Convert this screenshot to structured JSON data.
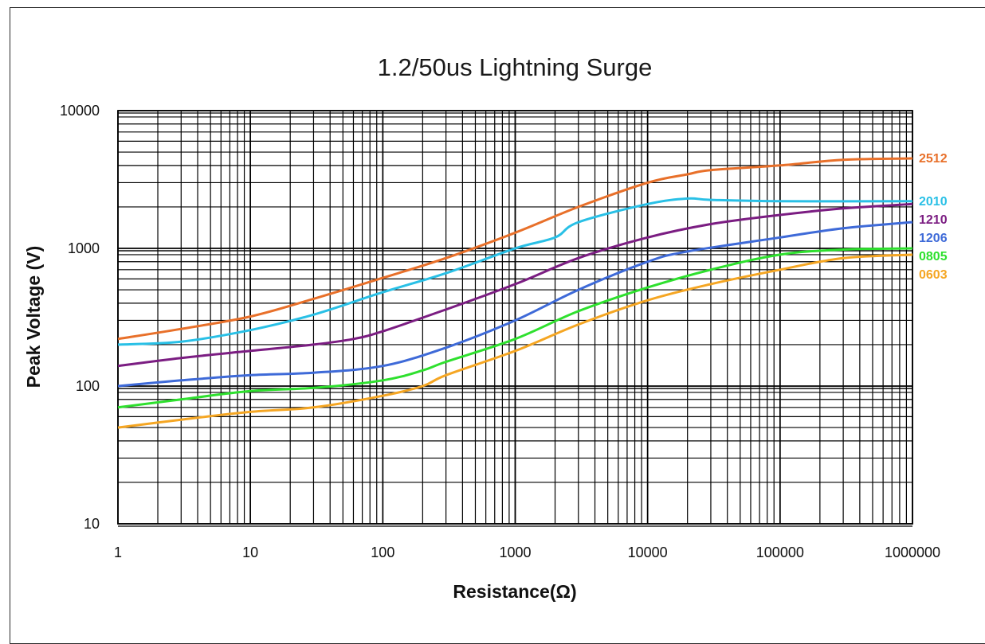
{
  "chart_data": {
    "type": "line",
    "title": "1.2/50us Lightning Surge",
    "xlabel": "Resistance(Ω)",
    "ylabel": "Peak Voltage (V)",
    "x_scale": "log",
    "y_scale": "log",
    "xlim": [
      1,
      1000000
    ],
    "ylim": [
      10,
      10000
    ],
    "grid": true,
    "legend": "right-edge labels",
    "x_ticks": [
      "1",
      "10",
      "100",
      "1000",
      "10000",
      "100000",
      "1000000"
    ],
    "y_ticks": [
      "10",
      "100",
      "1000",
      "10000"
    ],
    "series": [
      {
        "name": "2512",
        "color": "#e8702a",
        "points": [
          [
            1,
            220
          ],
          [
            3,
            260
          ],
          [
            10,
            320
          ],
          [
            30,
            430
          ],
          [
            100,
            610
          ],
          [
            300,
            850
          ],
          [
            1000,
            1300
          ],
          [
            3000,
            2000
          ],
          [
            10000,
            3000
          ],
          [
            20000,
            3450
          ],
          [
            30000,
            3700
          ],
          [
            100000,
            4000
          ],
          [
            300000,
            4400
          ],
          [
            1000000,
            4500
          ]
        ]
      },
      {
        "name": "2010",
        "color": "#29c0e6",
        "points": [
          [
            1,
            200
          ],
          [
            3,
            210
          ],
          [
            10,
            255
          ],
          [
            30,
            330
          ],
          [
            100,
            480
          ],
          [
            300,
            660
          ],
          [
            1000,
            1000
          ],
          [
            2000,
            1200
          ],
          [
            3000,
            1550
          ],
          [
            10000,
            2100
          ],
          [
            20000,
            2300
          ],
          [
            30000,
            2250
          ],
          [
            100000,
            2200
          ],
          [
            1000000,
            2200
          ]
        ]
      },
      {
        "name": "1210",
        "color": "#7b1d82",
        "points": [
          [
            1,
            140
          ],
          [
            3,
            160
          ],
          [
            10,
            180
          ],
          [
            30,
            200
          ],
          [
            60,
            220
          ],
          [
            100,
            250
          ],
          [
            300,
            360
          ],
          [
            1000,
            550
          ],
          [
            3000,
            850
          ],
          [
            10000,
            1200
          ],
          [
            30000,
            1500
          ],
          [
            100000,
            1750
          ],
          [
            300000,
            1950
          ],
          [
            1000000,
            2100
          ]
        ]
      },
      {
        "name": "1206",
        "color": "#3e6ad8",
        "points": [
          [
            1,
            100
          ],
          [
            3,
            110
          ],
          [
            10,
            120
          ],
          [
            30,
            125
          ],
          [
            100,
            140
          ],
          [
            300,
            190
          ],
          [
            1000,
            300
          ],
          [
            3000,
            500
          ],
          [
            10000,
            800
          ],
          [
            20000,
            950
          ],
          [
            100000,
            1200
          ],
          [
            300000,
            1400
          ],
          [
            1000000,
            1550
          ]
        ]
      },
      {
        "name": "0805",
        "color": "#2ee02e",
        "points": [
          [
            1,
            70
          ],
          [
            3,
            80
          ],
          [
            10,
            92
          ],
          [
            30,
            97
          ],
          [
            100,
            110
          ],
          [
            200,
            130
          ],
          [
            300,
            150
          ],
          [
            1000,
            220
          ],
          [
            3000,
            350
          ],
          [
            10000,
            520
          ],
          [
            30000,
            700
          ],
          [
            100000,
            900
          ],
          [
            300000,
            980
          ],
          [
            1000000,
            1000
          ]
        ]
      },
      {
        "name": "0603",
        "color": "#f5a623",
        "points": [
          [
            1,
            50
          ],
          [
            3,
            57
          ],
          [
            10,
            65
          ],
          [
            30,
            70
          ],
          [
            100,
            85
          ],
          [
            200,
            100
          ],
          [
            300,
            120
          ],
          [
            1000,
            180
          ],
          [
            3000,
            280
          ],
          [
            10000,
            420
          ],
          [
            30000,
            550
          ],
          [
            100000,
            700
          ],
          [
            300000,
            850
          ],
          [
            1000000,
            900
          ]
        ]
      }
    ]
  }
}
